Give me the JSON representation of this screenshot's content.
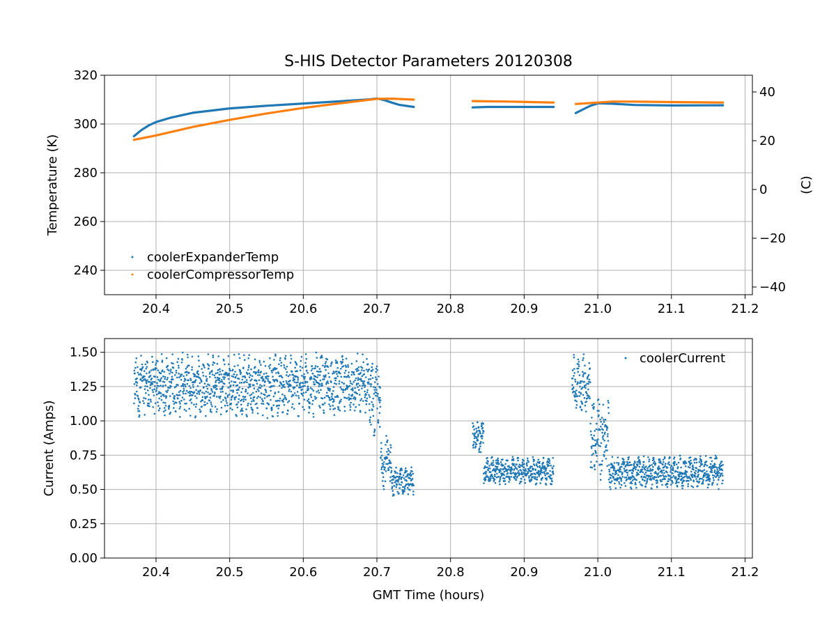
{
  "chart_data": [
    {
      "type": "scatter",
      "title": "S-HIS Detector Parameters 20120308",
      "xlabel": "",
      "ylabel": "Temperature (K)",
      "ylabel_right": "(C)",
      "xlim": [
        20.33,
        21.21
      ],
      "ylim": [
        230,
        320
      ],
      "ylim_right": [
        -43.15,
        46.85
      ],
      "xticks": [
        "20.4",
        "20.5",
        "20.6",
        "20.7",
        "20.8",
        "20.9",
        "21.0",
        "21.1",
        "21.2"
      ],
      "yticks": [
        "240",
        "260",
        "280",
        "300",
        "320"
      ],
      "yticks_right": [
        "−40",
        "−20",
        "0",
        "20",
        "40"
      ],
      "grid": true,
      "legend_position": "lower-left",
      "series": [
        {
          "name": "coolerExpanderTemp",
          "color": "#1f77b4",
          "points": [
            [
              20.37,
              295.0
            ],
            [
              20.38,
              297.5
            ],
            [
              20.39,
              299.4
            ],
            [
              20.4,
              300.8
            ],
            [
              20.42,
              302.6
            ],
            [
              20.45,
              304.6
            ],
            [
              20.5,
              306.4
            ],
            [
              20.55,
              307.5
            ],
            [
              20.6,
              308.4
            ],
            [
              20.65,
              309.3
            ],
            [
              20.69,
              310.1
            ],
            [
              20.7,
              310.5
            ],
            [
              20.71,
              309.8
            ],
            [
              20.72,
              308.8
            ],
            [
              20.73,
              307.9
            ],
            [
              20.75,
              307.0
            ],
            null,
            [
              20.83,
              306.8
            ],
            [
              20.85,
              307.0
            ],
            [
              20.9,
              307.0
            ],
            [
              20.94,
              307.0
            ],
            null,
            [
              20.97,
              304.5
            ],
            [
              20.98,
              306.0
            ],
            [
              20.99,
              307.5
            ],
            [
              21.0,
              308.5
            ],
            [
              21.02,
              308.3
            ],
            [
              21.05,
              307.8
            ],
            [
              21.1,
              307.6
            ],
            [
              21.17,
              307.7
            ]
          ]
        },
        {
          "name": "coolerCompressorTemp",
          "color": "#ff7f0e",
          "points": [
            [
              20.37,
              293.5
            ],
            [
              20.4,
              295.3
            ],
            [
              20.45,
              298.8
            ],
            [
              20.5,
              301.7
            ],
            [
              20.55,
              304.3
            ],
            [
              20.6,
              306.6
            ],
            [
              20.65,
              308.5
            ],
            [
              20.7,
              310.3
            ],
            [
              20.72,
              310.4
            ],
            [
              20.75,
              310.0
            ],
            null,
            [
              20.83,
              309.4
            ],
            [
              20.88,
              309.2
            ],
            [
              20.94,
              308.8
            ],
            null,
            [
              20.97,
              308.2
            ],
            [
              21.0,
              308.8
            ],
            [
              21.02,
              309.2
            ],
            [
              21.05,
              309.2
            ],
            [
              21.1,
              309.0
            ],
            [
              21.17,
              308.8
            ]
          ]
        }
      ]
    },
    {
      "type": "scatter",
      "title": "",
      "xlabel": "GMT Time (hours)",
      "ylabel": "Current (Amps)",
      "xlim": [
        20.33,
        21.21
      ],
      "ylim": [
        0.0,
        1.6
      ],
      "xticks": [
        "20.4",
        "20.5",
        "20.6",
        "20.7",
        "20.8",
        "20.9",
        "21.0",
        "21.1",
        "21.2"
      ],
      "yticks": [
        "0.00",
        "0.25",
        "0.50",
        "0.75",
        "1.00",
        "1.25",
        "1.50"
      ],
      "grid": true,
      "legend_position": "upper-right",
      "series": [
        {
          "name": "coolerCurrent",
          "color": "#1f77b4",
          "segments": [
            {
              "x_range": [
                20.37,
                20.69
              ],
              "lo": 1.02,
              "hi": 1.5
            },
            {
              "x_range": [
                20.69,
                20.705
              ],
              "lo": 0.85,
              "hi": 1.45
            },
            {
              "x_range": [
                20.705,
                20.72
              ],
              "lo": 0.5,
              "hi": 0.9
            },
            {
              "x_range": [
                20.72,
                20.75
              ],
              "lo": 0.45,
              "hi": 0.67
            },
            {
              "x_range": [
                20.83,
                20.845
              ],
              "lo": 0.75,
              "hi": 1.01
            },
            {
              "x_range": [
                20.845,
                20.94
              ],
              "lo": 0.53,
              "hi": 0.74
            },
            {
              "x_range": [
                20.965,
                20.99
              ],
              "lo": 1.05,
              "hi": 1.49
            },
            {
              "x_range": [
                20.99,
                21.015
              ],
              "lo": 0.55,
              "hi": 1.2
            },
            {
              "x_range": [
                21.015,
                21.17
              ],
              "lo": 0.5,
              "hi": 0.75
            }
          ]
        }
      ]
    }
  ]
}
